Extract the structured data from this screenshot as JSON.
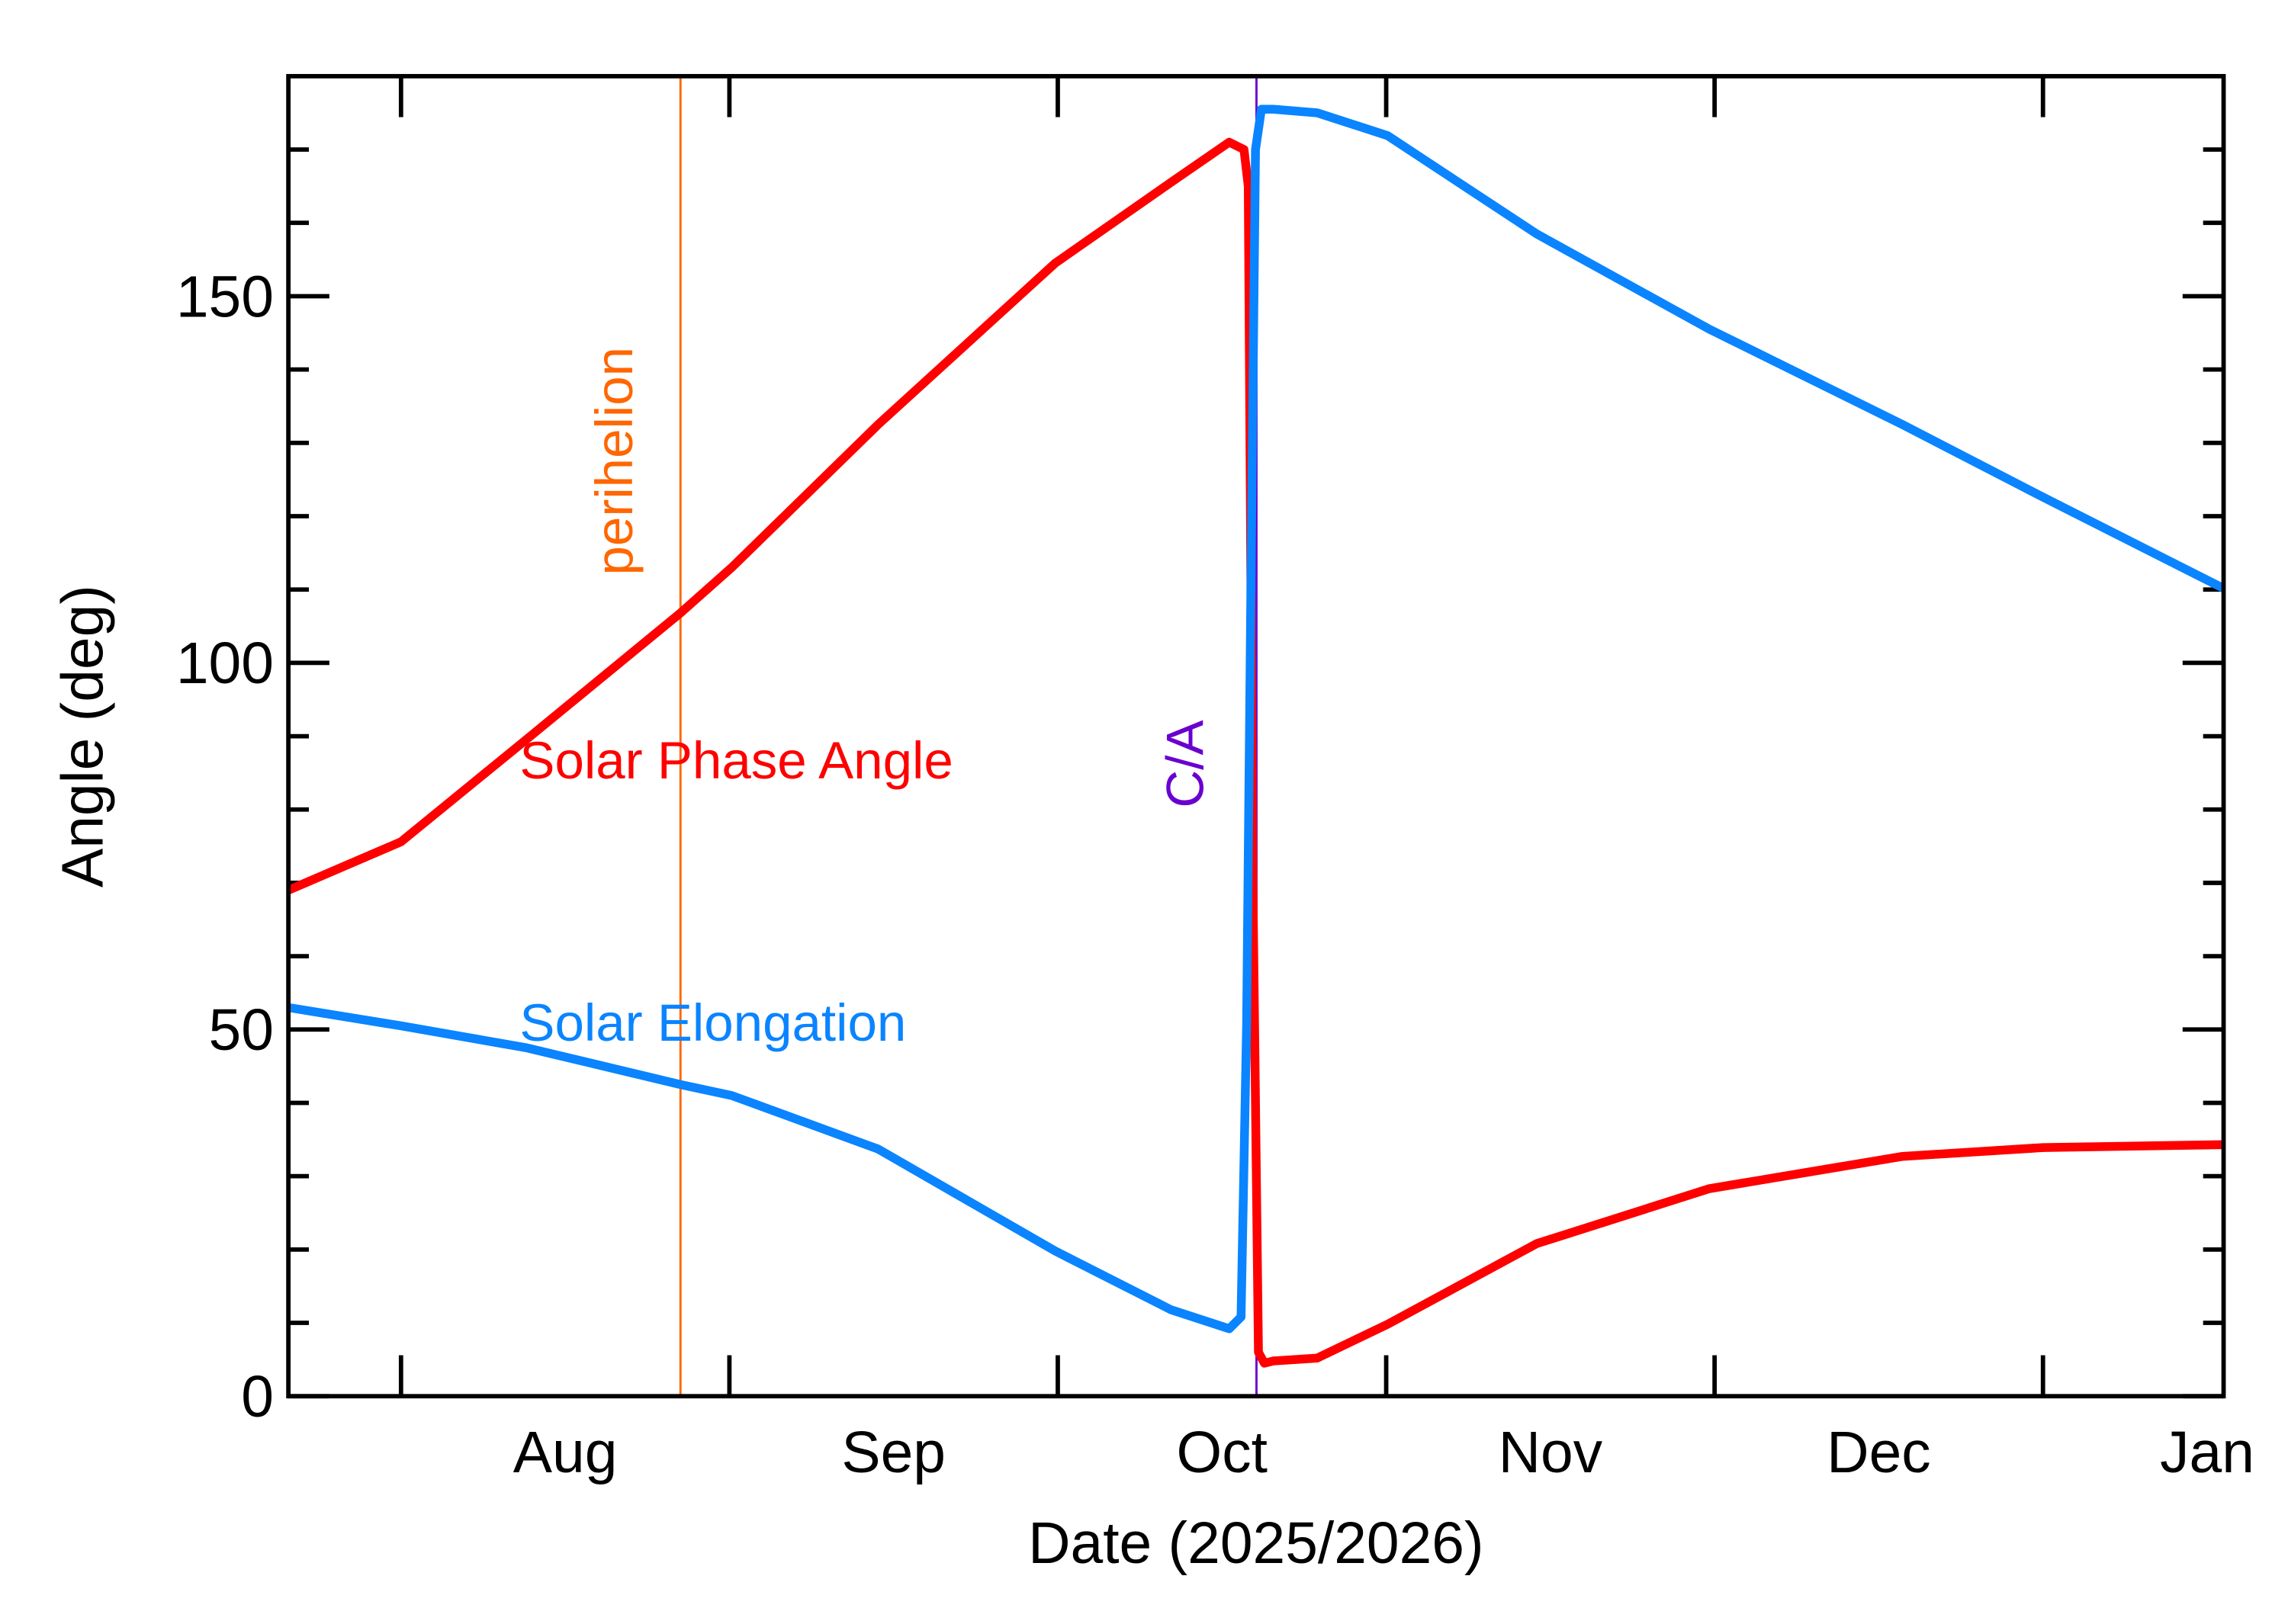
{
  "chart_data": {
    "type": "line",
    "xlabel": "Date (2025/2026)",
    "ylabel": "Angle (deg)",
    "xlim": [
      7.657,
      13.55
    ],
    "xticks": [
      {
        "value": 8.5,
        "label": "Aug"
      },
      {
        "value": 9.5,
        "label": "Sep"
      },
      {
        "value": 10.5,
        "label": "Oct"
      },
      {
        "value": 11.5,
        "label": "Nov"
      },
      {
        "value": 12.5,
        "label": "Dec"
      },
      {
        "value": 13.5,
        "label": "Jan"
      }
    ],
    "xtick_marks": [
      8,
      9,
      10,
      11,
      12,
      13
    ],
    "ylim": [
      0,
      180
    ],
    "yticks": [
      0,
      50,
      100,
      150
    ],
    "yminor_ticks": [
      10,
      20,
      30,
      40,
      60,
      70,
      80,
      90,
      110,
      120,
      130,
      140,
      160,
      170
    ],
    "vlines": [
      {
        "label": "perihelion",
        "x": 8.851,
        "color": "#ff6600"
      },
      {
        "label": "C/A",
        "x": 10.605,
        "color": "#6a00d0"
      }
    ],
    "series": [
      {
        "name": "Solar Phase Angle",
        "color": "#ff0000",
        "x": [
          7.657,
          8,
          8.383,
          8.851,
          9.007,
          9.453,
          9.992,
          10.344,
          10.522,
          10.567,
          10.58,
          10.594,
          10.611,
          10.629,
          10.656,
          10.79,
          11.004,
          11.458,
          11.984,
          12.572,
          13.0,
          13.548
        ],
        "values": [
          69,
          75.6,
          89.6,
          106.8,
          113,
          132.5,
          154.5,
          165.5,
          171,
          170,
          165,
          70,
          6,
          4.5,
          4.8,
          5.2,
          9.8,
          20.8,
          28.3,
          32.7,
          33.9,
          34.3
        ]
      },
      {
        "name": "Solar Elongation",
        "color": "#0a84ff",
        "x": [
          7.657,
          8,
          8.383,
          8.851,
          9.007,
          9.453,
          9.992,
          10.344,
          10.522,
          10.558,
          10.575,
          10.588,
          10.602,
          10.62,
          10.656,
          10.79,
          11.004,
          11.458,
          11.984,
          12.572,
          13.0,
          13.548
        ],
        "values": [
          53,
          50.5,
          47.5,
          42.5,
          41,
          33.7,
          19.8,
          11.8,
          9.2,
          10.8,
          50.7,
          110,
          170,
          175.5,
          175.5,
          175,
          171.9,
          158.5,
          145.5,
          132.5,
          122.6,
          110.2
        ]
      }
    ]
  }
}
